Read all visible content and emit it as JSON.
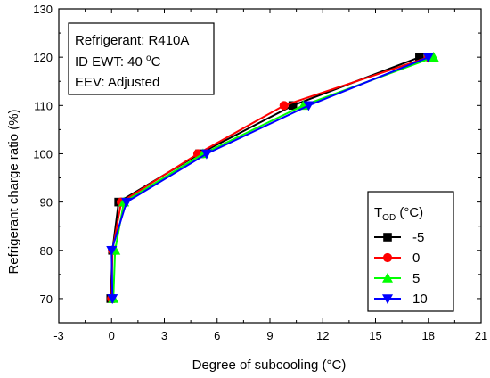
{
  "chart_data": {
    "type": "line",
    "xlabel": "Degree of subcooling (°C)",
    "ylabel": "Refrigerant charge ratio (%)",
    "xlim": [
      -3,
      21
    ],
    "ylim": [
      65,
      130
    ],
    "xticks": [
      -3,
      0,
      3,
      6,
      9,
      12,
      15,
      18,
      21
    ],
    "yticks": [
      70,
      80,
      90,
      100,
      110,
      120,
      130
    ],
    "grid": false,
    "annotation_lines": [
      {
        "prefix": "Refrigerant:  R410A"
      },
      {
        "prefix": "ID EWT:  40 ",
        "sup": "o",
        "suffix": "C"
      },
      {
        "prefix": "EEV:  Adjusted"
      }
    ],
    "legend": {
      "placement": "lower-right",
      "title_main": "T",
      "title_sub": "OD",
      "title_rest": " (°C)"
    },
    "series": [
      {
        "name": "-5",
        "color": "#000000",
        "marker": "square",
        "x": [
          -0.05,
          0.05,
          0.4,
          5.0,
          10.3,
          17.5
        ],
        "y": [
          70,
          80,
          90,
          100,
          110,
          120
        ]
      },
      {
        "name": "0",
        "color": "#ff0000",
        "marker": "circle",
        "x": [
          0.0,
          0.05,
          0.55,
          4.9,
          9.8,
          18.0
        ],
        "y": [
          70,
          80,
          90,
          100,
          110,
          120
        ]
      },
      {
        "name": "5",
        "color": "#00ff00",
        "marker": "triangle-up",
        "x": [
          0.1,
          0.2,
          0.7,
          5.2,
          10.9,
          18.3
        ],
        "y": [
          70,
          80,
          90,
          100,
          110,
          120
        ]
      },
      {
        "name": "10",
        "color": "#0000ff",
        "marker": "triangle-down",
        "x": [
          0.05,
          0.0,
          0.85,
          5.4,
          11.2,
          18.0
        ],
        "y": [
          70,
          80,
          90,
          100,
          110,
          120
        ]
      }
    ]
  }
}
